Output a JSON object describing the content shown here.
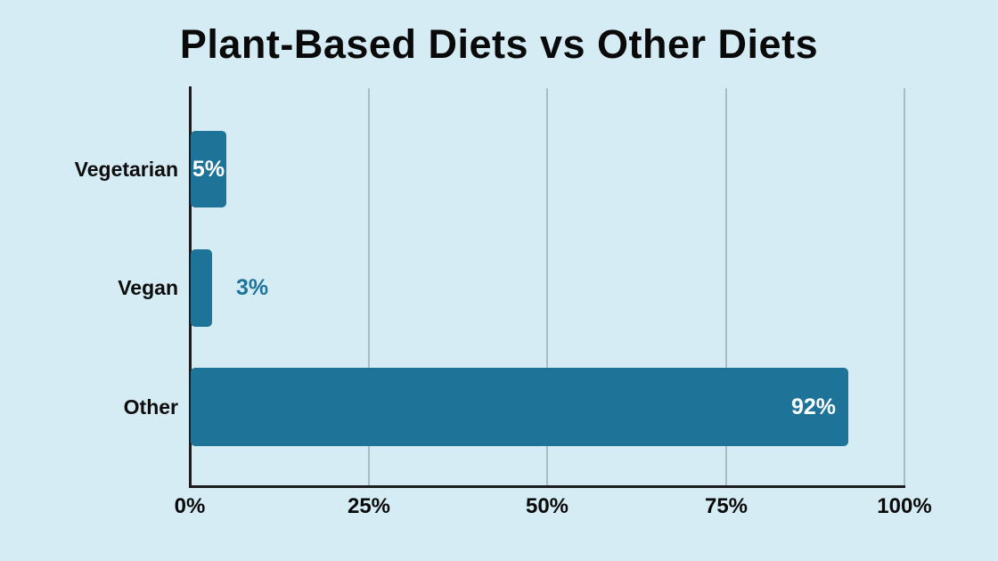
{
  "page": {
    "background_color": "#d6ecf4"
  },
  "chart_data": {
    "type": "bar",
    "orientation": "horizontal",
    "title": "Plant-Based Diets vs Other Diets",
    "categories": [
      "Vegetarian",
      "Vegan",
      "Other"
    ],
    "values": [
      5,
      3,
      92
    ],
    "value_labels": [
      "5%",
      "3%",
      "92%"
    ],
    "value_label_position": [
      "inside-center",
      "outside-end",
      "inside-end"
    ],
    "x_ticks": [
      0,
      25,
      50,
      75,
      100
    ],
    "x_tick_labels": [
      "0%",
      "25%",
      "50%",
      "75%",
      "100%"
    ],
    "xlim": [
      0,
      100
    ],
    "xlabel": "",
    "ylabel": "",
    "grid": "vertical-gridlines-at-ticks",
    "legend_position": "none",
    "colors": {
      "bar": "#1d7398",
      "background": "#d6ecf4",
      "value_label_inside": "#ffffff",
      "value_label_outside": "#1d7398",
      "axis_line": "#1c1c1c",
      "gridline": "#a9bdc7",
      "text": "#0a0a0a"
    }
  }
}
